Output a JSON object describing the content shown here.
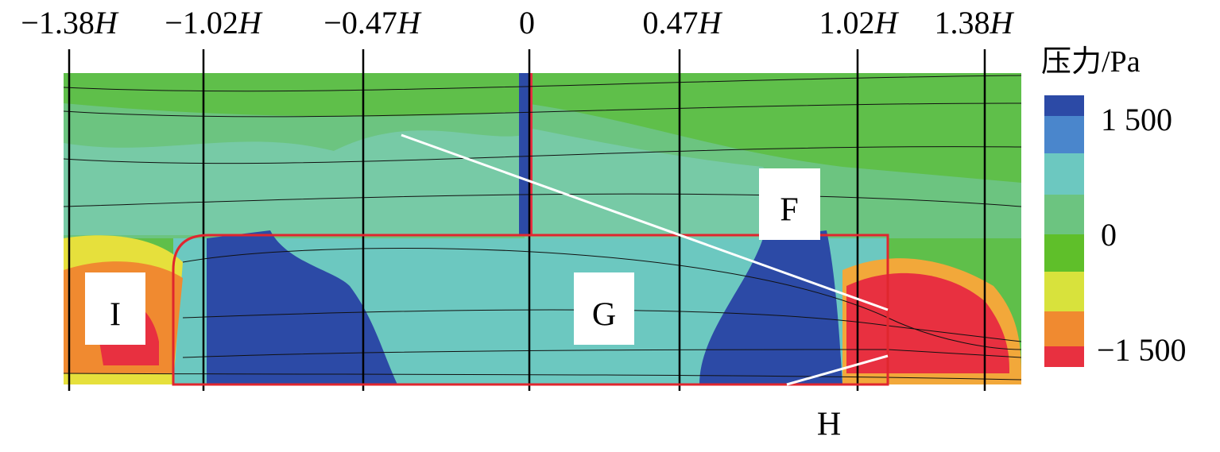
{
  "position_labels": [
    {
      "number": "−1.38",
      "unit": "H"
    },
    {
      "number": "−1.02",
      "unit": "H"
    },
    {
      "number": "−0.47",
      "unit": "H"
    },
    {
      "number": "0"
    },
    {
      "number": "0.47",
      "unit": "H"
    },
    {
      "number": "1.02",
      "unit": "H"
    },
    {
      "number": "1.38",
      "unit": "H"
    }
  ],
  "colorbar": {
    "title": "压力/Pa",
    "labels": [
      "1 500",
      "0",
      "−1 500"
    ]
  },
  "regions": {
    "F": "F",
    "G": "G",
    "H": "H",
    "I": "I"
  }
}
